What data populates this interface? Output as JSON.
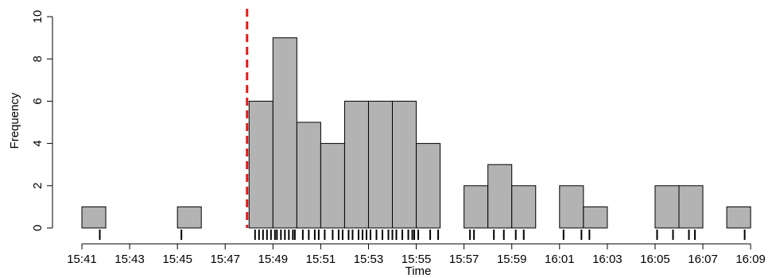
{
  "chart_data": {
    "type": "bar",
    "xlabel": "Time",
    "ylabel": "Frequency",
    "ylim": [
      0,
      10
    ],
    "y_ticks": [
      0,
      2,
      4,
      6,
      8,
      10
    ],
    "x_range_minutes": [
      "15:41",
      "16:09"
    ],
    "x_tick_labels": [
      "15:41",
      "15:43",
      "15:45",
      "15:47",
      "15:49",
      "15:51",
      "15:53",
      "15:55",
      "15:57",
      "15:59",
      "16:01",
      "16:03",
      "16:05",
      "16:07",
      "16:09"
    ],
    "bin_width_minutes": 1,
    "bins": [
      {
        "start": "15:41",
        "count": 1
      },
      {
        "start": "15:42",
        "count": 0
      },
      {
        "start": "15:43",
        "count": 0
      },
      {
        "start": "15:44",
        "count": 0
      },
      {
        "start": "15:45",
        "count": 1
      },
      {
        "start": "15:46",
        "count": 0
      },
      {
        "start": "15:47",
        "count": 0
      },
      {
        "start": "15:48",
        "count": 6
      },
      {
        "start": "15:49",
        "count": 9
      },
      {
        "start": "15:50",
        "count": 5
      },
      {
        "start": "15:51",
        "count": 4
      },
      {
        "start": "15:52",
        "count": 6
      },
      {
        "start": "15:53",
        "count": 6
      },
      {
        "start": "15:54",
        "count": 6
      },
      {
        "start": "15:55",
        "count": 4
      },
      {
        "start": "15:56",
        "count": 0
      },
      {
        "start": "15:57",
        "count": 2
      },
      {
        "start": "15:58",
        "count": 3
      },
      {
        "start": "15:59",
        "count": 2
      },
      {
        "start": "16:00",
        "count": 0
      },
      {
        "start": "16:01",
        "count": 2
      },
      {
        "start": "16:02",
        "count": 1
      },
      {
        "start": "16:03",
        "count": 0
      },
      {
        "start": "16:04",
        "count": 0
      },
      {
        "start": "16:05",
        "count": 2
      },
      {
        "start": "16:06",
        "count": 2
      },
      {
        "start": "16:07",
        "count": 0
      },
      {
        "start": "16:08",
        "count": 1
      }
    ],
    "rug_times": [
      "15:41:45",
      "15:45:10",
      "15:48:15",
      "15:48:25",
      "15:48:35",
      "15:48:45",
      "15:48:55",
      "15:49:05",
      "15:49:10",
      "15:49:20",
      "15:49:30",
      "15:49:40",
      "15:49:50",
      "15:49:55",
      "15:50:15",
      "15:50:30",
      "15:50:45",
      "15:50:55",
      "15:51:10",
      "15:51:30",
      "15:51:45",
      "15:51:55",
      "15:52:10",
      "15:52:20",
      "15:52:35",
      "15:52:45",
      "15:52:55",
      "15:53:05",
      "15:53:20",
      "15:53:35",
      "15:53:50",
      "15:54:00",
      "15:54:10",
      "15:54:25",
      "15:54:40",
      "15:54:50",
      "15:54:55",
      "15:55:05",
      "15:55:35",
      "15:55:55",
      "15:57:15",
      "15:57:25",
      "15:58:15",
      "15:58:40",
      "15:59:10",
      "15:59:30",
      "16:01:10",
      "16:01:55",
      "16:02:15",
      "16:05:05",
      "16:05:45",
      "16:06:25",
      "16:06:40",
      "16:08:45"
    ],
    "reference_line_time": "15:47:55",
    "colors": {
      "bar_fill": "#b3b3b3",
      "bar_stroke": "#000000",
      "reference_line": "#e31a1c",
      "rug": "#000000"
    },
    "grid": false,
    "legend": "none"
  }
}
